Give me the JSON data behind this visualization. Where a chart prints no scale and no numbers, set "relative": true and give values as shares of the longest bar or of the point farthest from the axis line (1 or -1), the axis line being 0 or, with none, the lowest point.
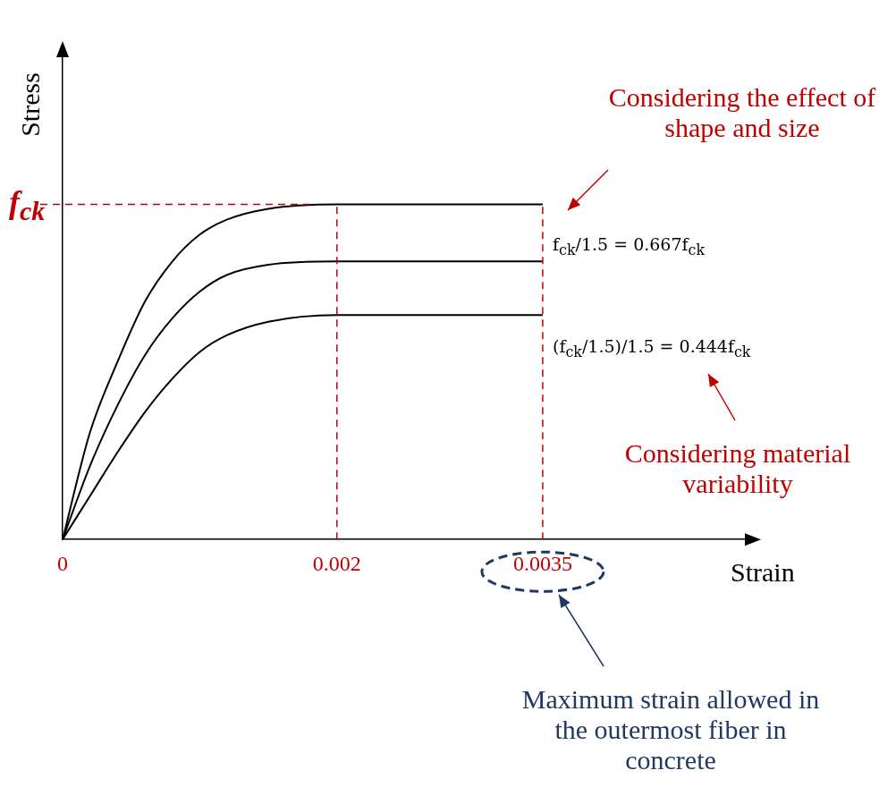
{
  "chart_data": {
    "type": "line",
    "relative": true,
    "xlabel": "Strain",
    "ylabel": "Stress",
    "x": [
      0,
      0.0002,
      0.0004,
      0.0006,
      0.0008,
      0.001,
      0.0012,
      0.0015,
      0.002,
      0.0025,
      0.0035
    ],
    "xlim": [
      0,
      0.005
    ],
    "xticks": [
      0,
      0.002,
      0.0035
    ],
    "series": [
      {
        "color": "#000000",
        "values": [
          0,
          0.32,
          0.53,
          0.71,
          0.83,
          0.91,
          0.955,
          0.987,
          1,
          1,
          1
        ]
      },
      {
        "color": "#000000",
        "values": [
          0,
          0.22,
          0.4,
          0.55,
          0.66,
          0.74,
          0.79,
          0.82,
          0.83,
          0.83,
          0.83
        ]
      },
      {
        "color": "#000000",
        "values": [
          0,
          0.13,
          0.26,
          0.38,
          0.48,
          0.56,
          0.61,
          0.65,
          0.67,
          0.67,
          0.67
        ]
      }
    ],
    "ref_lines": [
      {
        "axis": "y",
        "value": 1,
        "label": "f$_{ck}$",
        "color": "#c00000",
        "line_style": "dashed"
      },
      {
        "axis": "x",
        "value": 0.002,
        "color": "#c00000",
        "line_style": "dashed"
      },
      {
        "axis": "x",
        "value": 0.0035,
        "color": "#c00000",
        "line_style": "dashed"
      }
    ],
    "annotations": [
      "Considering the effect of shape and size",
      "f$_{ck}$/1.5 = 0.667f$_{ck}$",
      "(f$_{ck}$/1.5)/1.5 = 0.444f$_{ck}$",
      "Considering material variability",
      "Maximum strain allowed in the outermost fiber in concrete"
    ],
    "grid": false,
    "legend": false,
    "marker": "none",
    "line_style": "solid"
  }
}
